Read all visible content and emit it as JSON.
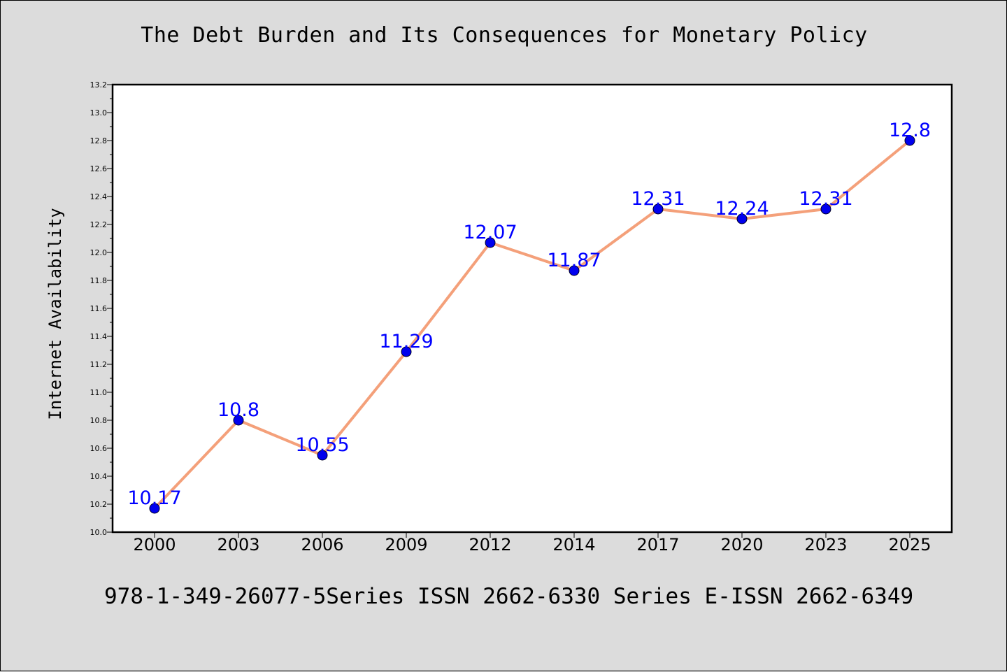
{
  "title": "The Debt Burden and Its Consequences for Monetary Policy",
  "footer": "978-1-349-26077-5Series ISSN 2662-6330 Series E-ISSN 2662-6349",
  "colors": {
    "line": "#f4a07a",
    "marker": "#0000ee",
    "data_label": "#0000ff",
    "background": "#dcdcdc",
    "plot_background": "#ffffff"
  },
  "chart_data": {
    "type": "line",
    "xlabel": "",
    "ylabel": "Internet Availability",
    "categories": [
      "2000",
      "2003",
      "2006",
      "2009",
      "2012",
      "2014",
      "2017",
      "2020",
      "2023",
      "2025"
    ],
    "values": [
      10.17,
      10.8,
      10.55,
      11.29,
      12.07,
      11.87,
      12.31,
      12.24,
      12.31,
      12.8
    ],
    "data_labels": [
      "10.17",
      "10.8",
      "10.55",
      "11.29",
      "12.07",
      "11.87",
      "12.31",
      "12.24",
      "12.31",
      "12.8"
    ],
    "ylim": [
      10.0,
      13.2
    ],
    "y_ticks": [
      "10.0",
      "10.2",
      "10.4",
      "10.6",
      "10.8",
      "11.0",
      "11.2",
      "11.4",
      "11.6",
      "11.8",
      "12.0",
      "12.2",
      "12.4",
      "12.6",
      "12.8",
      "13.0",
      "13.2"
    ],
    "grid": false,
    "legend": "none"
  }
}
